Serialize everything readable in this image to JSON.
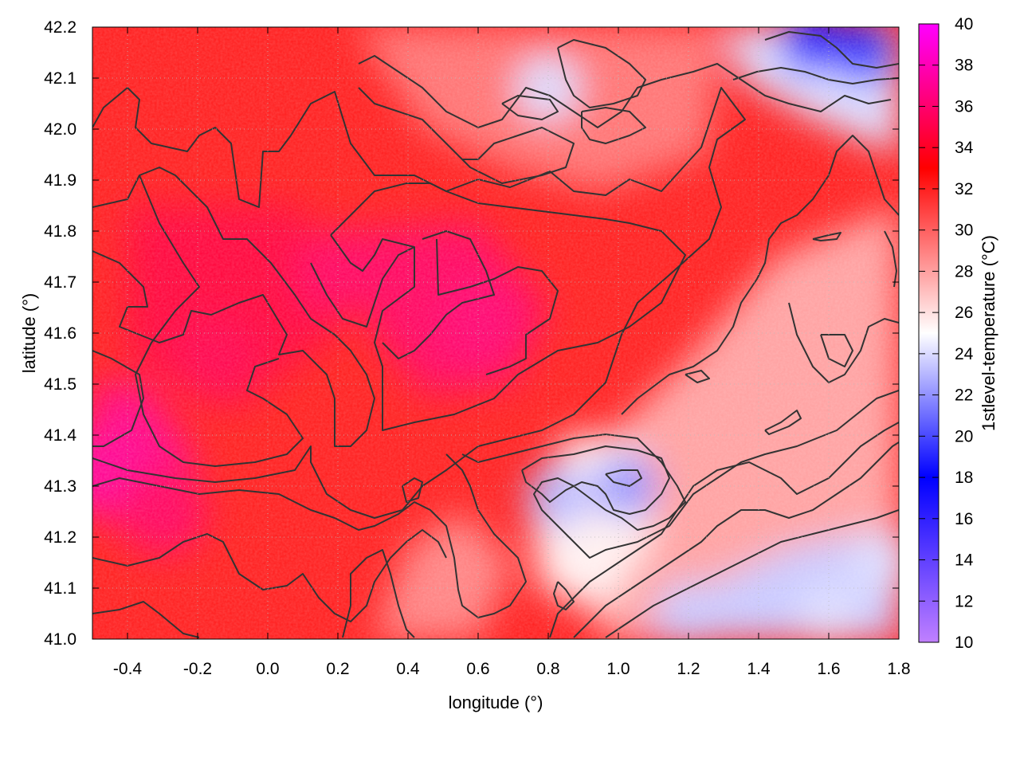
{
  "chart_data": {
    "type": "heatmap",
    "title": "",
    "xlabel": "longitude (°)",
    "ylabel": "latitude (°)",
    "colorbar_label": "1stlevel-temperature (°C)",
    "xlim": [
      -0.5,
      1.8
    ],
    "ylim": [
      41.0,
      42.2
    ],
    "x_ticks": [
      -0.4,
      -0.2,
      0.0,
      0.2,
      0.4,
      0.6,
      0.8,
      1.0,
      1.2,
      1.4,
      1.6,
      1.8
    ],
    "x_tick_labels": [
      "-0.4",
      "-0.2",
      "0.0",
      "0.2",
      "0.4",
      "0.6",
      "0.8",
      "1.0",
      "1.2",
      "1.4",
      "1.6",
      "1.8"
    ],
    "y_ticks": [
      41.0,
      41.1,
      41.2,
      41.3,
      41.4,
      41.5,
      41.6,
      41.7,
      41.8,
      41.9,
      42.0,
      42.1,
      42.2
    ],
    "y_tick_labels": [
      "41.0",
      "41.1",
      "41.2",
      "41.3",
      "41.4",
      "41.5",
      "41.6",
      "41.7",
      "41.8",
      "41.9",
      "42.0",
      "42.1",
      "42.2"
    ],
    "colorbar_range": [
      10,
      40
    ],
    "colorbar_ticks": [
      10,
      12,
      14,
      16,
      18,
      20,
      22,
      24,
      26,
      28,
      30,
      32,
      34,
      36,
      38,
      40
    ],
    "colorbar_tick_labels": [
      "10",
      "12",
      "14",
      "16",
      "18",
      "20",
      "22",
      "24",
      "26",
      "28",
      "30",
      "32",
      "34",
      "36",
      "38",
      "40"
    ],
    "colormap": [
      {
        "value": 10,
        "color": "#c080ff"
      },
      {
        "value": 18,
        "color": "#0000ff"
      },
      {
        "value": 25,
        "color": "#ffffff"
      },
      {
        "value": 33,
        "color": "#ff0000"
      },
      {
        "value": 40,
        "color": "#ff00ff"
      }
    ],
    "grid": true,
    "field_description": "Temperature field: highest values (34-37 °C) in the west/centre-west, moderate values (26-30 °C) in the south-east inland, coolest values (17-24 °C) over the sea in the south-east corner and in the far north-east.",
    "hot_spots": [
      {
        "lon": -0.48,
        "lat": 41.33,
        "value": 37
      },
      {
        "lon": 0.6,
        "lat": 41.62,
        "value": 36
      },
      {
        "lon": 0.2,
        "lat": 41.72,
        "value": 35.5
      },
      {
        "lon": -0.15,
        "lat": 41.55,
        "value": 35
      },
      {
        "lon": -0.3,
        "lat": 41.25,
        "value": 35.5
      }
    ],
    "cool_spots": [
      {
        "lon": 1.55,
        "lat": 42.17,
        "value": 17
      },
      {
        "lon": 1.7,
        "lat": 42.15,
        "value": 19
      },
      {
        "lon": 1.02,
        "lat": 41.3,
        "value": 22
      },
      {
        "lon": 0.83,
        "lat": 41.28,
        "value": 23
      },
      {
        "lon": 0.8,
        "lat": 42.08,
        "value": 24
      },
      {
        "lon": 1.6,
        "lat": 41.05,
        "value": 24
      },
      {
        "lon": 1.75,
        "lat": 41.15,
        "value": 24
      },
      {
        "lon": 1.2,
        "lat": 41.05,
        "value": 23.5
      }
    ]
  }
}
